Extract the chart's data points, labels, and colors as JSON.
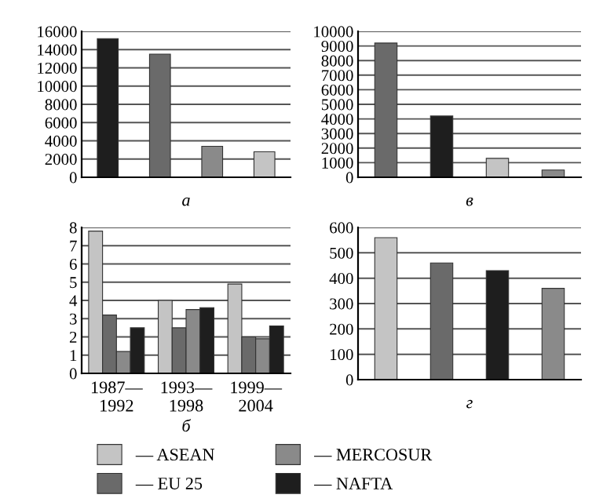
{
  "chart_data": [
    {
      "type": "bar",
      "xlabel": "а",
      "categories": [
        null,
        null,
        null,
        null
      ],
      "values": [
        15200,
        13500,
        3400,
        2800
      ],
      "colors": [
        "#1e1e1e",
        "#6a6a6a",
        "#8a8a8a",
        "#c4c4c4"
      ],
      "ylim": [
        0,
        16000
      ],
      "yticks": [
        0,
        2000,
        4000,
        6000,
        8000,
        10000,
        12000,
        14000,
        16000
      ],
      "grid": "y"
    },
    {
      "type": "bar",
      "xlabel": "в",
      "categories": [
        null,
        null,
        null,
        null
      ],
      "values": [
        9200,
        4200,
        1300,
        500
      ],
      "colors": [
        "#6a6a6a",
        "#1e1e1e",
        "#c4c4c4",
        "#8a8a8a"
      ],
      "ylim": [
        0,
        10000
      ],
      "yticks": [
        0,
        1000,
        2000,
        3000,
        4000,
        5000,
        6000,
        7000,
        8000,
        9000,
        10000
      ],
      "grid": "y"
    },
    {
      "type": "bar",
      "xlabel": "б",
      "categories": [
        "1987—\n1992",
        "1993—\n1998",
        "1999—\n2004"
      ],
      "series": [
        {
          "name": "— ASEAN",
          "color": "#c4c4c4",
          "values": [
            7.8,
            4.0,
            4.9
          ]
        },
        {
          "name": "— EU 25",
          "color": "#6a6a6a",
          "values": [
            3.2,
            2.5,
            2.0
          ]
        },
        {
          "name": "— MERCOSUR",
          "color": "#8a8a8a",
          "values": [
            1.2,
            3.5,
            1.9
          ]
        },
        {
          "name": "— NAFTA",
          "color": "#1e1e1e",
          "values": [
            2.5,
            3.6,
            2.6
          ]
        }
      ],
      "ylim": [
        0,
        8
      ],
      "yticks": [
        0,
        1,
        2,
        3,
        4,
        5,
        6,
        7,
        8
      ],
      "grid": "y",
      "legend": "bottom"
    },
    {
      "type": "bar",
      "xlabel": "г",
      "categories": [
        null,
        null,
        null,
        null
      ],
      "values": [
        560,
        460,
        430,
        360
      ],
      "colors": [
        "#c4c4c4",
        "#6a6a6a",
        "#1e1e1e",
        "#8a8a8a"
      ],
      "ylim": [
        0,
        600
      ],
      "yticks": [
        0,
        100,
        200,
        300,
        400,
        500,
        600
      ],
      "grid": "y"
    }
  ]
}
